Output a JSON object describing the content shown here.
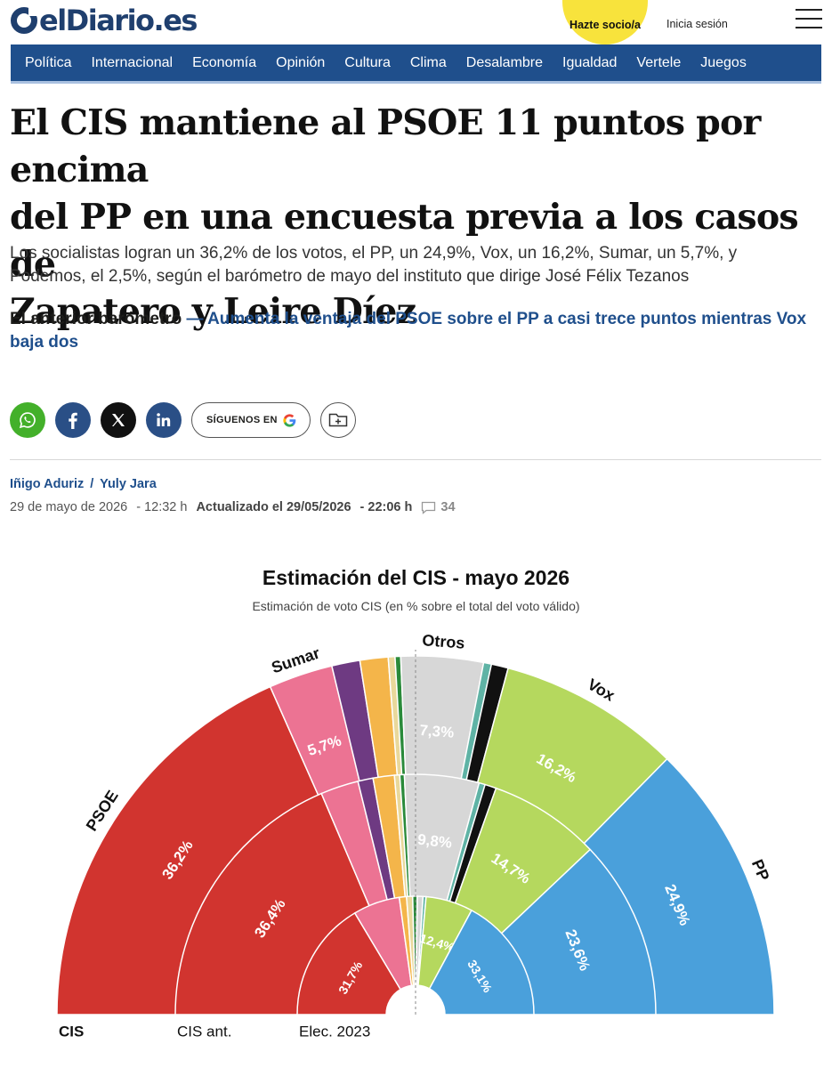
{
  "header": {
    "logo_text": "elDiario.es",
    "hazte_socio": "Hazte socio/a",
    "login": "Inicia sesión"
  },
  "nav": {
    "items": [
      "Política",
      "Internacional",
      "Economía",
      "Opinión",
      "Cultura",
      "Clima",
      "Desalambre",
      "Igualdad",
      "Vertele",
      "Juegos"
    ]
  },
  "article": {
    "headline_lines": [
      "El CIS mantiene al PSOE 11 puntos por encima",
      "del PP en una encuesta previa a los casos de",
      "Zapatero y Leire Díez"
    ],
    "subtitle_lines": [
      "Los socialistas logran un 36,2% de los votos, el PP, un 24,9%, Vox, un 16,2%, Sumar, un 5,7%, y",
      "Podemos, el 2,5%, según el barómetro de mayo del instituto que dirige José Félix Tezanos"
    ],
    "related_label": "El anterior barómetro",
    "related_link": "— Aumenta la ventaja del PSOE sobre el PP a casi trece puntos mientras Vox baja dos",
    "authors": [
      "Iñigo Aduriz",
      "Yuly Jara"
    ],
    "author_separator": "/",
    "date": "29 de mayo de 2026",
    "time": "12:32 h",
    "updated_label": "Actualizado el 29/05/2026",
    "updated_time": "22:06 h",
    "comments": "34"
  },
  "share": {
    "follow_label": "SÍGUENOS EN",
    "icons": [
      "whatsapp-icon",
      "facebook-icon",
      "x-icon",
      "linkedin-icon",
      "google-icon",
      "folder-add-icon"
    ]
  },
  "colors": {
    "brand_blue": "#1f4f8c",
    "PSOE": "#d1342f",
    "Sumar": "#ec7393",
    "Podemos": "#6e3a82",
    "orange_party": "#f4b54a",
    "light_yellow_party": "#e9d89b",
    "green_party": "#2a8a3a",
    "Otros": "#d7d7d7",
    "teal_party": "#5fb3a5",
    "black_party": "#111111",
    "Vox": "#b5d85e",
    "PP": "#4aa0db"
  },
  "chart_data": {
    "type": "semicircle-donut",
    "title": "Estimación del CIS - mayo 2026",
    "subtitle": "Estimación de voto CIS (en % sobre el total del voto válido)",
    "category_labels": [
      "PSOE",
      "Sumar",
      "Otros",
      "Vox",
      "PP"
    ],
    "series": [
      {
        "name": "CIS",
        "slices": [
          {
            "party": "PSOE",
            "value": 36.2,
            "label": "36,2%"
          },
          {
            "party": "Sumar",
            "value": 5.7,
            "label": "5,7%"
          },
          {
            "party": "Podemos",
            "value": 2.5,
            "label": ""
          },
          {
            "party": "orange_party",
            "value": 2.5,
            "label": ""
          },
          {
            "party": "light_yellow_party",
            "value": 0.6,
            "label": ""
          },
          {
            "party": "green_party",
            "value": 0.5,
            "label": ""
          },
          {
            "party": "Otros",
            "value": 7.3,
            "label": "7,3%"
          },
          {
            "party": "teal_party",
            "value": 0.7,
            "label": ""
          },
          {
            "party": "black_party",
            "value": 1.5,
            "label": ""
          },
          {
            "party": "Vox",
            "value": 16.2,
            "label": "16,2%"
          },
          {
            "party": "PP",
            "value": 24.9,
            "label": "24,9%"
          }
        ]
      },
      {
        "name": "CIS ant.",
        "slices": [
          {
            "party": "PSOE",
            "value": 36.4,
            "label": "36,4%"
          },
          {
            "party": "Sumar",
            "value": 5.0,
            "label": ""
          },
          {
            "party": "Podemos",
            "value": 2.0,
            "label": ""
          },
          {
            "party": "orange_party",
            "value": 2.8,
            "label": ""
          },
          {
            "party": "light_yellow_party",
            "value": 0.7,
            "label": ""
          },
          {
            "party": "green_party",
            "value": 0.6,
            "label": ""
          },
          {
            "party": "Otros",
            "value": 9.8,
            "label": "9,8%"
          },
          {
            "party": "teal_party",
            "value": 0.8,
            "label": ""
          },
          {
            "party": "black_party",
            "value": 1.5,
            "label": ""
          },
          {
            "party": "Vox",
            "value": 14.7,
            "label": "14,7%"
          },
          {
            "party": "PP",
            "value": 23.6,
            "label": "23,6%"
          }
        ]
      },
      {
        "name": "Elec. 2023",
        "slices": [
          {
            "party": "PSOE",
            "value": 31.7,
            "label": "31,7%"
          },
          {
            "party": "Sumar",
            "value": 12.3,
            "label": ""
          },
          {
            "party": "orange_party",
            "value": 1.9,
            "label": ""
          },
          {
            "party": "light_yellow_party",
            "value": 1.6,
            "label": ""
          },
          {
            "party": "green_party",
            "value": 1.2,
            "label": ""
          },
          {
            "party": "Otros",
            "value": 1.5,
            "label": ""
          },
          {
            "party": "teal_party",
            "value": 0.8,
            "label": ""
          },
          {
            "party": "Vox",
            "value": 12.4,
            "label": "12,4%"
          },
          {
            "party": "PP",
            "value": 33.1,
            "label": "33,1%"
          }
        ]
      }
    ]
  }
}
